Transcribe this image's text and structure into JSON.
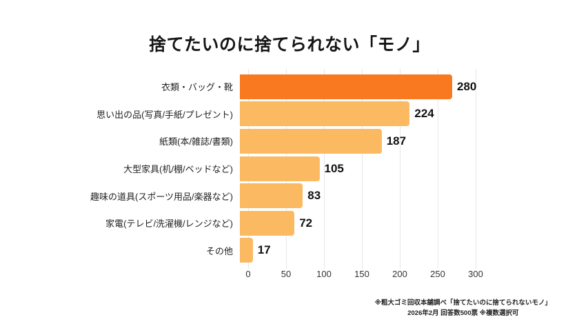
{
  "title": "捨てたいのに捨てられない「モノ」",
  "chart_data": {
    "type": "bar",
    "orientation": "horizontal",
    "title": "捨てたいのに捨てられない「モノ」",
    "categories": [
      "衣類・バッグ・靴",
      "思い出の品(写真/手紙/プレゼント)",
      "紙類(本/雑誌/書類)",
      "大型家具(机/棚/ベッドなど)",
      "趣味の道具(スポーツ用品/楽器など)",
      "家電(テレビ/洗濯機/レンジなど)",
      "その他"
    ],
    "values": [
      280,
      224,
      187,
      105,
      83,
      72,
      17
    ],
    "xlim": [
      0,
      300
    ],
    "xticks": [
      "0",
      "50",
      "100",
      "150",
      "200",
      "250",
      "300"
    ],
    "grid": true,
    "value_labels": true,
    "highlight_index": 0,
    "colors": {
      "highlight_bar": "#F8791F",
      "default_bar": "#FBBA62",
      "gridline": "#e7e7e7",
      "text": "#141414"
    }
  },
  "footer": {
    "line1": "※粗大ゴミ回収本舗調べ「捨てたいのに捨てられないモノ」",
    "line2": "2026年2月 回答数500票 ※複数選択可"
  }
}
